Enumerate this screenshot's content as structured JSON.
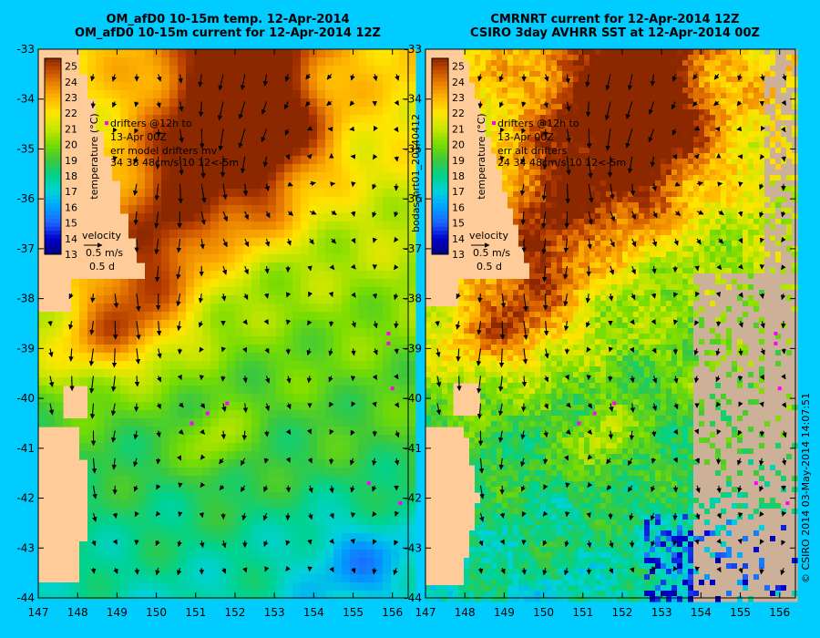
{
  "titles": {
    "left_line1": "OM_afD0 10-15m temp. 12-Apr-2014",
    "left_line2": "OM_afD0 10-15m current for 12-Apr-2014 12Z",
    "right_line1": "CMRNRT current for 12-Apr-2014 12Z",
    "right_line2": "CSIRO 3day AVHRR SST at 12-Apr-2014 00Z"
  },
  "run_label": "bodas_nrt01_20140412",
  "copyright": "© CSIRO 2014  03-May-2014 14:07:51",
  "colors": {
    "page_background": "#00ccff",
    "land": "#ffcc99",
    "cloud_mask": "#ccb098",
    "drifter": "#ff00ff",
    "arrow": "#000000"
  },
  "left_panel": {
    "legend": {
      "drifter_line1": "drifters @12h to",
      "drifter_line2": "13-Apr 00Z",
      "drifter_line3": "err model drifters mv",
      "drifter_line4": "34   38    48cm/s  10 12<-5m",
      "velocity_title": "velocity",
      "velocity_scale": "0.5 m/s",
      "velocity_time": "0.5 d"
    }
  },
  "right_panel": {
    "legend": {
      "drifter_line1": "drifters @12h to",
      "drifter_line2": "13-Apr 00Z",
      "drifter_line3": "err alt drifters",
      "drifter_line4": "24 34 48cm/s 10 12<-5m",
      "velocity_title": "velocity",
      "velocity_scale": "0.5 m/s",
      "velocity_time": "0.5 d"
    }
  },
  "chart_data": [
    {
      "type": "heatmap",
      "panel": "left",
      "title": "OM_afD0 10-15m temp. 12-Apr-2014",
      "subtitle": "OM_afD0 10-15m current for 12-Apr-2014 12Z",
      "xlim": [
        147,
        156.4
      ],
      "ylim": [
        -44,
        -33
      ],
      "x_ticks": [
        "147",
        "148",
        "149",
        "150",
        "151",
        "152",
        "153",
        "154",
        "155",
        "156"
      ],
      "y_ticks": [
        "-33",
        "-34",
        "-35",
        "-36",
        "-37",
        "-38",
        "-39",
        "-40",
        "-41",
        "-42",
        "-43",
        "-44"
      ],
      "colorbar": {
        "label": "temperature (°C)",
        "range": [
          13,
          25.5
        ],
        "ticks": [
          "25",
          "24",
          "23",
          "22",
          "21",
          "20",
          "19",
          "18",
          "17",
          "16",
          "15",
          "14",
          "13"
        ]
      },
      "colormap": [
        [
          13,
          "#000080"
        ],
        [
          14,
          "#0000cd"
        ],
        [
          15,
          "#1e64ff"
        ],
        [
          16,
          "#00a0ff"
        ],
        [
          17,
          "#00d2dc"
        ],
        [
          18,
          "#00d28c"
        ],
        [
          19,
          "#3cc83c"
        ],
        [
          20,
          "#78dc00"
        ],
        [
          21,
          "#c8e600"
        ],
        [
          22,
          "#ffe600"
        ],
        [
          23,
          "#ffb400"
        ],
        [
          24,
          "#e67800"
        ],
        [
          25,
          "#b43c00"
        ],
        [
          25.5,
          "#8c2800"
        ]
      ]
    },
    {
      "type": "heatmap",
      "panel": "right",
      "title": "CMRNRT current for 12-Apr-2014 12Z",
      "subtitle": "CSIRO 3day AVHRR SST at 12-Apr-2014 00Z",
      "xlim": [
        147,
        156.4
      ],
      "ylim": [
        -44,
        -33
      ],
      "x_ticks": [
        "147",
        "148",
        "149",
        "150",
        "151",
        "152",
        "153",
        "154",
        "155",
        "156"
      ],
      "y_ticks": [
        "-33",
        "-34",
        "-35",
        "-36",
        "-37",
        "-38",
        "-39",
        "-40",
        "-41",
        "-42",
        "-43",
        "-44"
      ],
      "colorbar": {
        "label": "temperature (°C)",
        "range": [
          13,
          25.5
        ],
        "ticks": [
          "25",
          "24",
          "23",
          "22",
          "21",
          "20",
          "19",
          "18",
          "17",
          "16",
          "15",
          "14",
          "13"
        ]
      },
      "colormap": [
        [
          13,
          "#000080"
        ],
        [
          14,
          "#0000cd"
        ],
        [
          15,
          "#1e64ff"
        ],
        [
          16,
          "#00a0ff"
        ],
        [
          17,
          "#00d2dc"
        ],
        [
          18,
          "#00d28c"
        ],
        [
          19,
          "#3cc83c"
        ],
        [
          20,
          "#78dc00"
        ],
        [
          21,
          "#c8e600"
        ],
        [
          22,
          "#ffe600"
        ],
        [
          23,
          "#ffb400"
        ],
        [
          24,
          "#e67800"
        ],
        [
          25,
          "#b43c00"
        ],
        [
          25.5,
          "#8c2800"
        ]
      ]
    }
  ]
}
